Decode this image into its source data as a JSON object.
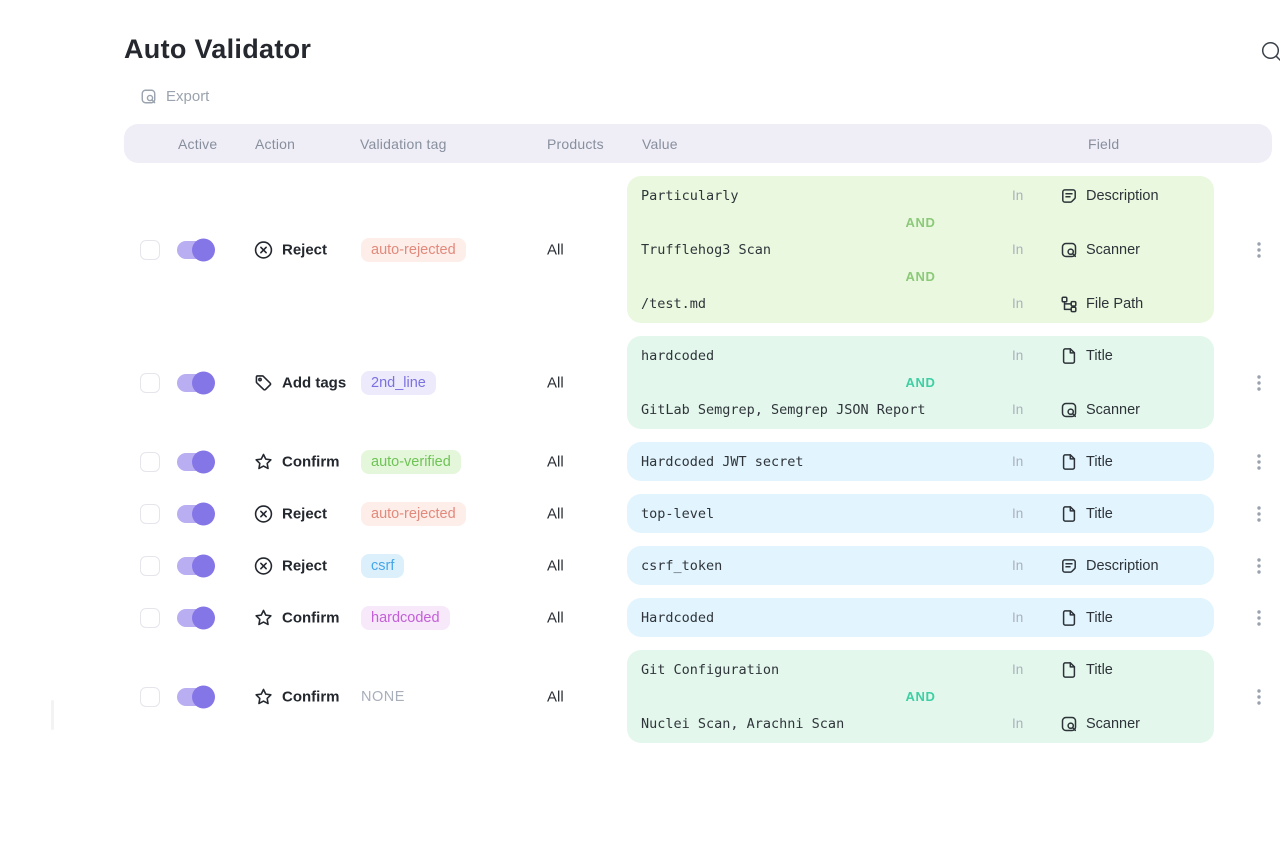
{
  "app": {
    "title": "Auto Validator",
    "search_icon": "search-icon"
  },
  "toolbar": {
    "export_label": "Export",
    "export_icon": "export-icon"
  },
  "table": {
    "columns": [
      "Active",
      "Action",
      "Validation tag",
      "Products",
      "Value",
      "Field"
    ],
    "rows": [
      {
        "active": false,
        "enabled": true,
        "action": {
          "label": "Reject",
          "icon": "reject-icon"
        },
        "tag": {
          "label": "auto-rejected",
          "style": "red"
        },
        "products": "All",
        "tone": "green",
        "joiner": "AND",
        "conditions": [
          {
            "value": "Particularly",
            "operator": "In",
            "field": "Description",
            "field_icon": "description-icon"
          },
          {
            "value": "Trufflehog3 Scan",
            "operator": "In",
            "field": "Scanner",
            "field_icon": "scanner-icon"
          },
          {
            "value": "/test.md",
            "operator": "In",
            "field": "File Path",
            "field_icon": "file-path-icon"
          }
        ]
      },
      {
        "active": false,
        "enabled": true,
        "action": {
          "label": "Add tags",
          "icon": "tag-icon"
        },
        "tag": {
          "label": "2nd_line",
          "style": "purple"
        },
        "products": "All",
        "tone": "mint",
        "joiner": "AND",
        "conditions": [
          {
            "value": "hardcoded",
            "operator": "In",
            "field": "Title",
            "field_icon": "title-icon"
          },
          {
            "value": "GitLab Semgrep, Semgrep JSON Report",
            "operator": "In",
            "field": "Scanner",
            "field_icon": "scanner-icon"
          }
        ]
      },
      {
        "active": false,
        "enabled": true,
        "action": {
          "label": "Confirm",
          "icon": "star-icon"
        },
        "tag": {
          "label": "auto-verified",
          "style": "green"
        },
        "products": "All",
        "tone": "blue",
        "joiner": "AND",
        "conditions": [
          {
            "value": "Hardcoded JWT secret",
            "operator": "In",
            "field": "Title",
            "field_icon": "title-icon"
          }
        ]
      },
      {
        "active": false,
        "enabled": true,
        "action": {
          "label": "Reject",
          "icon": "reject-icon"
        },
        "tag": {
          "label": "auto-rejected",
          "style": "red"
        },
        "products": "All",
        "tone": "blue",
        "joiner": "AND",
        "conditions": [
          {
            "value": "top-level",
            "operator": "In",
            "field": "Title",
            "field_icon": "title-icon"
          }
        ]
      },
      {
        "active": false,
        "enabled": true,
        "action": {
          "label": "Reject",
          "icon": "reject-icon"
        },
        "tag": {
          "label": "csrf",
          "style": "blue"
        },
        "products": "All",
        "tone": "blue",
        "joiner": "AND",
        "conditions": [
          {
            "value": "csrf_token",
            "operator": "In",
            "field": "Description",
            "field_icon": "description-icon"
          }
        ]
      },
      {
        "active": false,
        "enabled": true,
        "action": {
          "label": "Confirm",
          "icon": "star-icon"
        },
        "tag": {
          "label": "hardcoded",
          "style": "magenta"
        },
        "products": "All",
        "tone": "blue",
        "joiner": "AND",
        "conditions": [
          {
            "value": "Hardcoded",
            "operator": "In",
            "field": "Title",
            "field_icon": "title-icon"
          }
        ]
      },
      {
        "active": false,
        "enabled": true,
        "action": {
          "label": "Confirm",
          "icon": "star-icon"
        },
        "tag": {
          "label": "NONE",
          "style": "none"
        },
        "products": "All",
        "tone": "mint",
        "joiner": "AND",
        "conditions": [
          {
            "value": "Git Configuration",
            "operator": "In",
            "field": "Title",
            "field_icon": "title-icon"
          },
          {
            "value": "Nuclei Scan, Arachni Scan",
            "operator": "In",
            "field": "Scanner",
            "field_icon": "scanner-icon"
          }
        ]
      }
    ]
  },
  "colors": {
    "accent_knob": "#8576e8",
    "toggle_track": "#b9aef2",
    "tones": {
      "green": "#eaf8df",
      "mint": "#e3f7ec",
      "blue": "#e2f4fd"
    },
    "joiners": {
      "green": "#8cc979",
      "mint": "#3ecfa4",
      "blue": "#3ecfa4"
    },
    "tag_styles": {
      "red": {
        "bg": "#fdeeea",
        "text": "#e2897b"
      },
      "purple": {
        "bg": "#edebfb",
        "text": "#7a70e0"
      },
      "green": {
        "bg": "#e4f7da",
        "text": "#6fc356"
      },
      "blue": {
        "bg": "#dcf0fc",
        "text": "#46a6e8"
      },
      "magenta": {
        "bg": "#f7e8fa",
        "text": "#c35fd7"
      },
      "none": {
        "bg": "transparent",
        "text": "#a8afbb"
      }
    }
  }
}
